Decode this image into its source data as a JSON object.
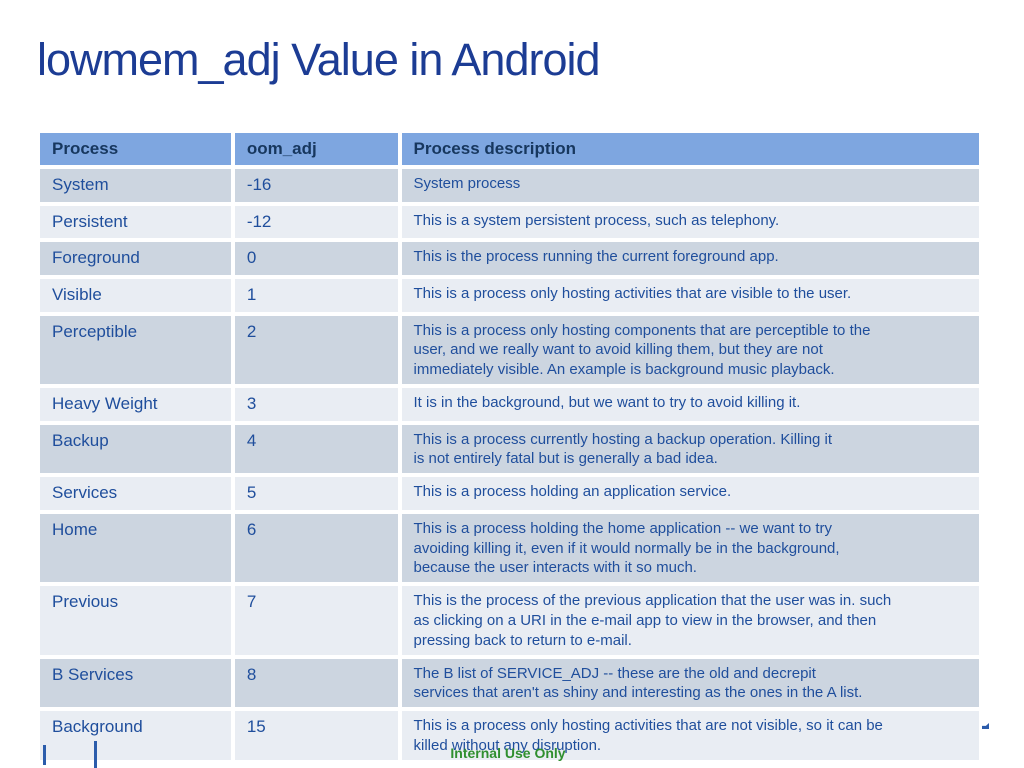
{
  "title": "lowmem_adj Value in Android",
  "table": {
    "columns": [
      "Process",
      "oom_adj",
      "Process description"
    ],
    "rows": [
      {
        "process": "System",
        "oom_adj": "-16",
        "description": "System process"
      },
      {
        "process": "Persistent",
        "oom_adj": "-12",
        "description": "This is a system persistent process, such as telephony."
      },
      {
        "process": "Foreground",
        "oom_adj": "0",
        "description": "This is the process running the current foreground app."
      },
      {
        "process": "Visible",
        "oom_adj": "1",
        "description": "This is a process only hosting activities that are visible to the user."
      },
      {
        "process": "Perceptible",
        "oom_adj": "2",
        "description": "This is a process only hosting components that are perceptible to the\nuser, and we really want to avoid killing them, but they are not\nimmediately visible. An example is background music playback."
      },
      {
        "process": "Heavy Weight",
        "oom_adj": "3",
        "description": "It is in the background, but we want to try to avoid killing it."
      },
      {
        "process": "Backup",
        "oom_adj": "4",
        "description": "This is a process currently hosting a backup operation.  Killing it\nis not entirely fatal but is generally a bad idea."
      },
      {
        "process": "Services",
        "oom_adj": "5",
        "description": "This is a process holding an application service."
      },
      {
        "process": "Home",
        "oom_adj": "6",
        "description": "This is a process holding the home application -- we want to try\navoiding killing it, even if it would normally be in the background,\nbecause the user interacts with it so much."
      },
      {
        "process": "Previous",
        "oom_adj": "7",
        "description": "This is the process of the previous application that the user was in. such\nas clicking on a URI in the e-mail app to view in the browser, and then\npressing back to return to e-mail."
      },
      {
        "process": "B Services",
        "oom_adj": "8",
        "description": "The B list of SERVICE_ADJ -- these are the old and decrepit\nservices that aren't as shiny and interesting as the ones in the A list."
      },
      {
        "process": "Background",
        "oom_adj": "15",
        "description": "This is a process only hosting activities that are not visible, so it can be\nkilled without any disruption."
      }
    ]
  },
  "footer": {
    "classification": "Internal Use Only"
  },
  "colors": {
    "title_text": "#1c3c94",
    "header_bg": "#7ea6e0",
    "header_text": "#17375e",
    "row_odd_bg": "#ccd5e0",
    "row_even_bg": "#e9edf3",
    "cell_text": "#1f4e9c",
    "classification_text": "#2f8f2f",
    "accent_line": "#2b5cab"
  }
}
